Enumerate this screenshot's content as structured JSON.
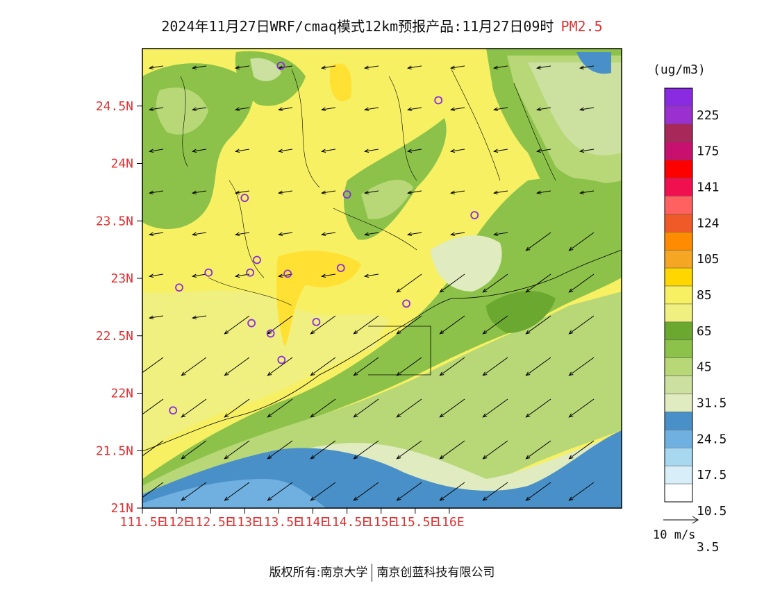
{
  "title": {
    "main": "2024年11月27日WRF/cmaq模式12km预报产品:11月27日09时",
    "pollutant": "PM2.5"
  },
  "chart_data": {
    "type": "heatmap",
    "variable": "PM2.5",
    "xlim": [
      111.5,
      116.5
    ],
    "ylim": [
      21.0,
      25.0
    ],
    "x_ticks": [
      "111.5E",
      "112E",
      "112.5E",
      "113E",
      "113.5E",
      "114E",
      "114.5E",
      "115E",
      "115.5E",
      "116E"
    ],
    "x_tick_values": [
      111.5,
      112.0,
      112.5,
      113.0,
      113.5,
      114.0,
      114.5,
      115.0,
      115.5,
      116.0
    ],
    "y_ticks": [
      "21N",
      "21.5N",
      "22N",
      "22.5N",
      "23N",
      "23.5N",
      "24N",
      "24.5N"
    ],
    "y_tick_values": [
      21.0,
      21.5,
      22.0,
      22.5,
      23.0,
      23.5,
      24.0,
      24.5
    ],
    "legend": {
      "units": "(ug/m3)",
      "labels": [
        "225",
        "175",
        "141",
        "124",
        "105",
        "85",
        "65",
        "45",
        "31.5",
        "24.5",
        "17.5",
        "10.5",
        "3.5"
      ],
      "colors": [
        "#8a2be2",
        "#9b30d0",
        "#a8285a",
        "#c8106e",
        "#ff0000",
        "#f01050",
        "#ff6060",
        "#f05a28",
        "#ff8c00",
        "#f5a623",
        "#ffd700",
        "#f7f063",
        "#f0f080",
        "#6aa830",
        "#8cc24a",
        "#b8d878",
        "#cce0a0",
        "#e0ecc0",
        "#4a90c8",
        "#70b0e0",
        "#a8d8f0",
        "#d8eef8",
        "#ffffff"
      ]
    },
    "stations": [
      {
        "lon": 113.53,
        "lat": 24.85
      },
      {
        "lon": 115.84,
        "lat": 24.55
      },
      {
        "lon": 113.0,
        "lat": 23.7
      },
      {
        "lon": 114.5,
        "lat": 23.73
      },
      {
        "lon": 116.37,
        "lat": 23.55
      },
      {
        "lon": 113.18,
        "lat": 23.16
      },
      {
        "lon": 113.08,
        "lat": 23.05
      },
      {
        "lon": 112.47,
        "lat": 23.05
      },
      {
        "lon": 113.63,
        "lat": 23.04
      },
      {
        "lon": 114.41,
        "lat": 23.09
      },
      {
        "lon": 112.04,
        "lat": 22.92
      },
      {
        "lon": 115.37,
        "lat": 22.78
      },
      {
        "lon": 113.1,
        "lat": 22.61
      },
      {
        "lon": 114.05,
        "lat": 22.62
      },
      {
        "lon": 113.38,
        "lat": 22.52
      },
      {
        "lon": 113.54,
        "lat": 22.29
      },
      {
        "lon": 111.95,
        "lat": 21.85
      }
    ],
    "wind_direction": "northeasterly"
  },
  "units": "(ug/m3)",
  "wind_scale": "10 m/s",
  "footer": {
    "copyright": "版权所有:南京大学",
    "company": "南京创蓝科技有限公司"
  },
  "colors": {
    "axis_label": "#e03030",
    "title": "#111111"
  }
}
